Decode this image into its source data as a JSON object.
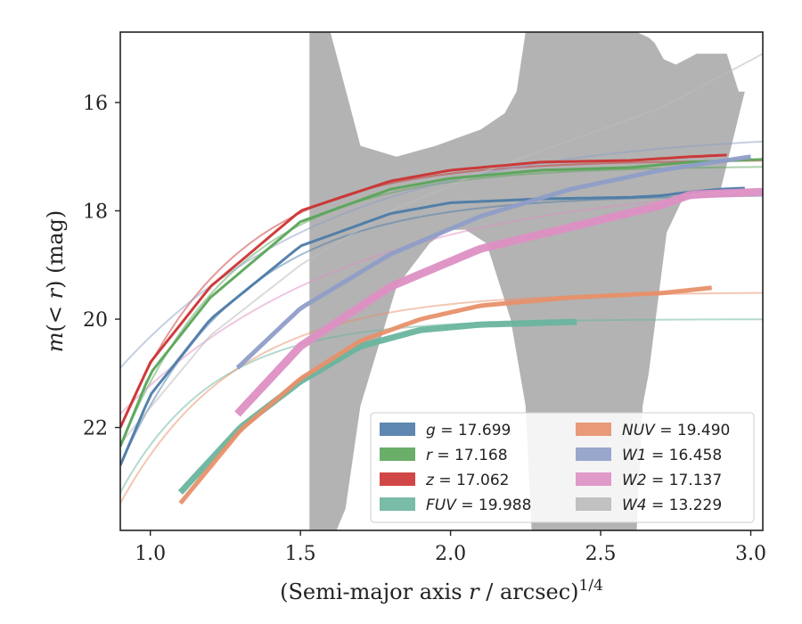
{
  "chart_data": {
    "type": "line",
    "xlabel": "(Semi-major axis r / arcsec)^1/4",
    "ylabel": "m(< r) (mag)",
    "xlim": [
      0.9,
      3.04
    ],
    "ylim": [
      23.9,
      14.7
    ],
    "y_inverted": true,
    "grid": false,
    "legend_position": "lower-right",
    "xticks": [
      {
        "value": 1.0,
        "label": "1.0"
      },
      {
        "value": 1.5,
        "label": "1.5"
      },
      {
        "value": 2.0,
        "label": "2.0"
      },
      {
        "value": 2.5,
        "label": "2.5"
      },
      {
        "value": 3.0,
        "label": "3.0"
      }
    ],
    "yticks": [
      {
        "value": 16,
        "label": "16"
      },
      {
        "value": 18,
        "label": "18"
      },
      {
        "value": 20,
        "label": "20"
      },
      {
        "value": 22,
        "label": "22"
      }
    ],
    "series": [
      {
        "name": "g",
        "value": "17.699",
        "color": "#4c7ba8",
        "x_range": [
          0.9,
          2.98
        ],
        "y_asym": 17.7,
        "y_start": 22.7,
        "k": 2.5,
        "x": [
          0.9,
          1.0,
          1.2,
          1.5,
          1.8,
          2.0,
          2.3,
          2.6,
          2.7,
          2.8,
          2.9,
          2.98
        ],
        "y": [
          22.7,
          21.4,
          20.0,
          18.65,
          18.05,
          17.85,
          17.78,
          17.75,
          17.72,
          17.65,
          17.6,
          17.58
        ]
      },
      {
        "name": "r",
        "value": "17.168",
        "color": "#5aa55a",
        "x_range": [
          0.9,
          3.04
        ],
        "y_asym": 17.17,
        "y_start": 22.35,
        "k": 2.6,
        "x": [
          0.9,
          1.0,
          1.2,
          1.5,
          1.8,
          2.0,
          2.3,
          2.6,
          2.8,
          3.04
        ],
        "y": [
          22.35,
          21.0,
          19.6,
          18.2,
          17.6,
          17.4,
          17.25,
          17.2,
          17.1,
          17.05
        ]
      },
      {
        "name": "z",
        "value": "17.062",
        "color": "#cc3333",
        "x_range": [
          0.9,
          2.92
        ],
        "y_asym": 17.06,
        "y_start": 22.0,
        "k": 2.7,
        "x": [
          0.9,
          1.0,
          1.2,
          1.5,
          1.8,
          2.0,
          2.3,
          2.6,
          2.8,
          2.92
        ],
        "y": [
          22.0,
          20.8,
          19.4,
          18.0,
          17.45,
          17.25,
          17.1,
          17.07,
          17.0,
          16.97
        ]
      },
      {
        "name": "FUV",
        "value": "19.988",
        "color": "#6ab59f",
        "x_range": [
          1.1,
          2.42
        ],
        "y_asym": 20.0,
        "y_start": 23.2,
        "k": 3.2,
        "x": [
          1.1,
          1.3,
          1.5,
          1.7,
          1.9,
          2.1,
          2.42
        ],
        "y": [
          23.2,
          22.0,
          21.15,
          20.5,
          20.2,
          20.1,
          20.05
        ]
      },
      {
        "name": "NUV",
        "value": "19.490",
        "color": "#e8906a",
        "x_range": [
          1.1,
          2.87
        ],
        "y_asym": 19.5,
        "y_start": 23.4,
        "k": 2.6,
        "x": [
          1.1,
          1.3,
          1.5,
          1.7,
          1.9,
          2.1,
          2.4,
          2.7,
          2.87
        ],
        "y": [
          23.4,
          22.05,
          21.1,
          20.4,
          20.0,
          19.75,
          19.6,
          19.52,
          19.42
        ]
      },
      {
        "name": "W1",
        "value": "16.458",
        "color": "#8f9ec8",
        "x_range": [
          1.29,
          3.0
        ],
        "y_asym": 16.5,
        "y_start": 20.9,
        "k": 1.4,
        "x": [
          1.29,
          1.5,
          1.8,
          2.1,
          2.4,
          2.7,
          3.0
        ],
        "y": [
          20.9,
          19.8,
          18.8,
          18.1,
          17.6,
          17.25,
          17.0
        ]
      },
      {
        "name": "W2",
        "value": "17.137",
        "color": "#dd90c4",
        "x_range": [
          1.29,
          3.04
        ],
        "y_asym": 17.4,
        "y_start": 21.75,
        "k": 1.3,
        "x": [
          1.29,
          1.5,
          1.8,
          2.1,
          2.4,
          2.7,
          2.8,
          3.04
        ],
        "y": [
          21.75,
          20.5,
          19.4,
          18.7,
          18.3,
          17.9,
          17.7,
          17.65
        ]
      },
      {
        "name": "W4",
        "value": "13.229",
        "color": "#bbbbbb",
        "x_range": [
          0.9,
          3.04
        ],
        "y_asym": 13.23,
        "y_start": 22.3,
        "k": 0.75,
        "x": [
          0.9,
          1.2,
          1.5,
          1.8,
          2.1,
          2.4,
          2.7,
          3.04
        ],
        "y": [
          22.3,
          20.3,
          19.0,
          18.0,
          17.3,
          16.7,
          16.1,
          15.1
        ]
      }
    ],
    "w4_band": {
      "color": "#b3b3b3",
      "upper": [
        [
          1.53,
          14.7
        ],
        [
          1.6,
          14.7
        ],
        [
          1.7,
          16.8
        ],
        [
          1.82,
          17.0
        ],
        [
          1.95,
          16.8
        ],
        [
          2.1,
          16.5
        ],
        [
          2.18,
          16.2
        ],
        [
          2.22,
          15.8
        ],
        [
          2.25,
          14.7
        ],
        [
          2.62,
          14.7
        ],
        [
          2.66,
          14.8
        ],
        [
          2.68,
          14.9
        ],
        [
          2.71,
          15.2
        ],
        [
          2.75,
          15.3
        ],
        [
          2.82,
          15.1
        ],
        [
          2.92,
          15.1
        ],
        [
          2.96,
          15.8
        ],
        [
          2.98,
          15.8
        ]
      ],
      "lower": [
        [
          1.53,
          23.9
        ],
        [
          1.62,
          23.9
        ],
        [
          1.65,
          23.5
        ],
        [
          1.7,
          21.6
        ],
        [
          1.82,
          19.4
        ],
        [
          1.93,
          18.6
        ],
        [
          1.99,
          18.35
        ],
        [
          2.05,
          18.35
        ],
        [
          2.12,
          18.6
        ],
        [
          2.16,
          19.3
        ],
        [
          2.2,
          20.0
        ],
        [
          2.25,
          21.6
        ],
        [
          2.27,
          23.9
        ],
        [
          2.62,
          23.9
        ],
        [
          2.64,
          21.6
        ],
        [
          2.66,
          21.0
        ],
        [
          2.72,
          18.4
        ],
        [
          2.78,
          17.7
        ],
        [
          2.9,
          17.6
        ],
        [
          2.98,
          15.8
        ]
      ]
    }
  }
}
